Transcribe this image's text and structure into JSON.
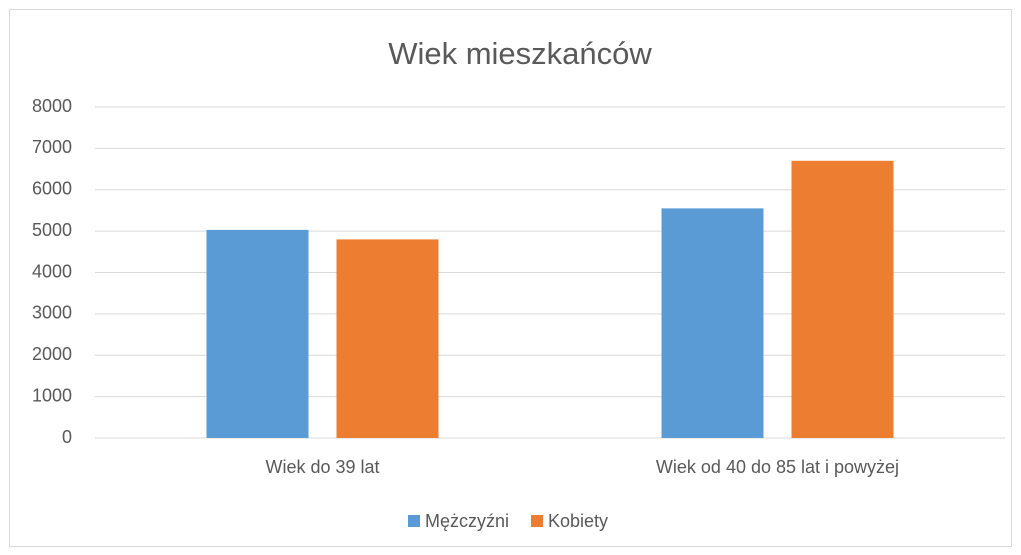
{
  "chart_data": {
    "type": "bar",
    "title": "Wiek mieszkańców",
    "categories": [
      "Wiek do 39 lat",
      "Wiek od 40 do 85 lat i powyżej"
    ],
    "series": [
      {
        "name": "Mężczyźni",
        "color": "#5b9bd5",
        "values": [
          5030,
          5550
        ]
      },
      {
        "name": "Kobiety",
        "color": "#ed7d31",
        "values": [
          4800,
          6700
        ]
      }
    ],
    "ylim": [
      0,
      8000
    ],
    "yticks": [
      0,
      1000,
      2000,
      3000,
      4000,
      5000,
      6000,
      7000,
      8000
    ],
    "grid": true,
    "legend": "bottom"
  }
}
